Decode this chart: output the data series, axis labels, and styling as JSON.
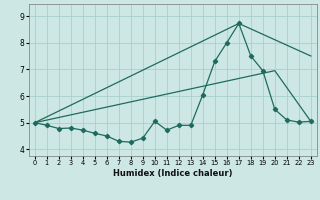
{
  "xlabel": "Humidex (Indice chaleur)",
  "bg_color": "#cde8e4",
  "grid_color": "#aacfcc",
  "line_color": "#1e6b5e",
  "xlim": [
    -0.5,
    23.5
  ],
  "ylim": [
    3.75,
    9.45
  ],
  "yticks": [
    4,
    5,
    6,
    7,
    8,
    9
  ],
  "xticks": [
    0,
    1,
    2,
    3,
    4,
    5,
    6,
    7,
    8,
    9,
    10,
    11,
    12,
    13,
    14,
    15,
    16,
    17,
    18,
    19,
    20,
    21,
    22,
    23
  ],
  "series1_x": [
    0,
    1,
    2,
    3,
    4,
    5,
    6,
    7,
    8,
    9,
    10,
    11,
    12,
    13,
    14,
    15,
    16,
    17,
    18,
    19,
    20,
    21,
    22,
    23
  ],
  "series1_y": [
    5.0,
    4.9,
    4.78,
    4.8,
    4.72,
    4.6,
    4.5,
    4.3,
    4.27,
    4.42,
    5.05,
    4.72,
    4.9,
    4.9,
    6.05,
    7.3,
    8.0,
    8.72,
    7.5,
    6.95,
    5.5,
    5.1,
    5.02,
    5.05
  ],
  "series2_x": [
    0,
    20,
    23
  ],
  "series2_y": [
    5.0,
    6.95,
    5.05
  ],
  "series3_x": [
    0,
    17,
    23
  ],
  "series3_y": [
    5.0,
    8.72,
    7.5
  ]
}
